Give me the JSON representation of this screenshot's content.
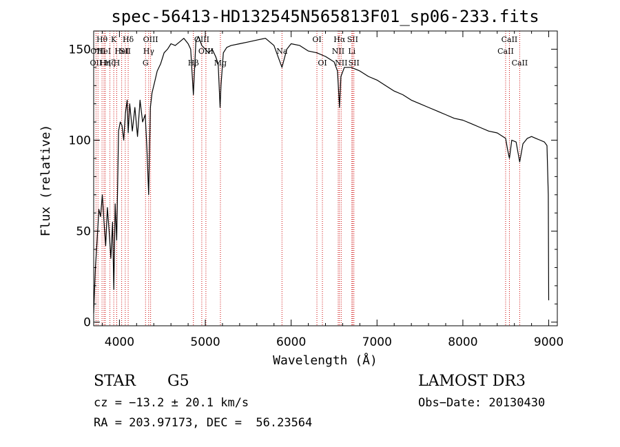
{
  "chart_data": {
    "type": "line",
    "title": "spec-56413-HD132545N565813F01_sp06-233.fits",
    "xlabel": "Wavelength (Å)",
    "ylabel": "Flux (relative)",
    "xlim": [
      3700,
      9100
    ],
    "ylim": [
      -2,
      160
    ],
    "x_ticks": [
      4000,
      5000,
      6000,
      7000,
      8000,
      9000
    ],
    "x_tick_labels": [
      "4000",
      "5000",
      "6000",
      "7000",
      "8000",
      "9000"
    ],
    "y_ticks": [
      0,
      50,
      100,
      150
    ],
    "y_tick_labels": [
      "0",
      "50",
      "100",
      "150"
    ],
    "grid": false,
    "series": [
      {
        "name": "flux",
        "x": [
          3700,
          3720,
          3740,
          3760,
          3780,
          3800,
          3820,
          3840,
          3860,
          3880,
          3900,
          3920,
          3934,
          3950,
          3968,
          3990,
          4010,
          4030,
          4050,
          4070,
          4090,
          4102,
          4120,
          4150,
          4180,
          4210,
          4240,
          4270,
          4300,
          4320,
          4340,
          4360,
          4380,
          4410,
          4440,
          4480,
          4520,
          4560,
          4600,
          4650,
          4700,
          4750,
          4800,
          4830,
          4861,
          4890,
          4920,
          4960,
          5000,
          5040,
          5080,
          5120,
          5150,
          5172,
          5183,
          5210,
          5250,
          5300,
          5400,
          5500,
          5600,
          5700,
          5800,
          5893,
          5950,
          6000,
          6100,
          6200,
          6300,
          6400,
          6500,
          6540,
          6563,
          6580,
          6620,
          6700,
          6800,
          6900,
          7000,
          7100,
          7200,
          7300,
          7400,
          7500,
          7600,
          7700,
          7800,
          7900,
          8000,
          8100,
          8200,
          8300,
          8400,
          8498,
          8520,
          8542,
          8570,
          8620,
          8662,
          8700,
          8750,
          8800,
          8850,
          8900,
          8950,
          8980,
          8995,
          9000
        ],
        "y": [
          5,
          30,
          45,
          62,
          58,
          70,
          55,
          42,
          63,
          50,
          35,
          55,
          18,
          65,
          45,
          105,
          110,
          108,
          100,
          115,
          122,
          104,
          120,
          105,
          118,
          102,
          122,
          110,
          114,
          95,
          70,
          118,
          126,
          132,
          138,
          142,
          148,
          150,
          153,
          152,
          154,
          156,
          153,
          150,
          125,
          154,
          157,
          152,
          150,
          148,
          150,
          146,
          142,
          118,
          130,
          148,
          151,
          152,
          153,
          154,
          155,
          156,
          152,
          140,
          150,
          153,
          152,
          149,
          148,
          146,
          143,
          138,
          118,
          135,
          140,
          140,
          138,
          135,
          133,
          130,
          127,
          125,
          122,
          120,
          118,
          116,
          114,
          112,
          111,
          109,
          107,
          105,
          104,
          101,
          95,
          90,
          100,
          99,
          88,
          98,
          101,
          102,
          101,
          100,
          99,
          97,
          70,
          12
        ]
      }
    ],
    "line_markers": [
      {
        "wavelength": 3727,
        "label": "OII",
        "row": 2
      },
      {
        "wavelength": 3750,
        "label": "OIII",
        "row": 1
      },
      {
        "wavelength": 3797,
        "label": "Hθ",
        "row": 0
      },
      {
        "wavelength": 3820,
        "label": "HeI",
        "row": 1
      },
      {
        "wavelength": 3835,
        "label": "Hη",
        "row": 2
      },
      {
        "wavelength": 3889,
        "label": "Hζ",
        "row": 2
      },
      {
        "wavelength": 3933.7,
        "label": "K",
        "row": 0
      },
      {
        "wavelength": 3968.5,
        "label": "H",
        "row": 2
      },
      {
        "wavelength": 4026,
        "label": "HeI",
        "row": 1
      },
      {
        "wavelength": 4068,
        "label": "SII",
        "row": 1
      },
      {
        "wavelength": 4101.7,
        "label": "Hδ",
        "row": 0
      },
      {
        "wavelength": 4304,
        "label": "G",
        "row": 2
      },
      {
        "wavelength": 4340.5,
        "label": "Hγ",
        "row": 1
      },
      {
        "wavelength": 4363,
        "label": "OIII",
        "row": 0
      },
      {
        "wavelength": 4861.3,
        "label": "Hβ",
        "row": 2
      },
      {
        "wavelength": 4959,
        "label": "OIII",
        "row": 0
      },
      {
        "wavelength": 5007,
        "label": "OIII",
        "row": 1
      },
      {
        "wavelength": 5176,
        "label": "Mg",
        "row": 2
      },
      {
        "wavelength": 5893,
        "label": "Na",
        "row": 1
      },
      {
        "wavelength": 6300,
        "label": "OI",
        "row": 0
      },
      {
        "wavelength": 6364,
        "label": "OI",
        "row": 2
      },
      {
        "wavelength": 6548,
        "label": "NII",
        "row": 1
      },
      {
        "wavelength": 6562.8,
        "label": "Hα",
        "row": 0
      },
      {
        "wavelength": 6583,
        "label": "NII",
        "row": 2
      },
      {
        "wavelength": 6707,
        "label": "Li",
        "row": 1
      },
      {
        "wavelength": 6716,
        "label": "SII",
        "row": 0
      },
      {
        "wavelength": 6731,
        "label": "SII",
        "row": 2
      },
      {
        "wavelength": 8498,
        "label": "CaII",
        "row": 1
      },
      {
        "wavelength": 8542,
        "label": "CaII",
        "row": 0
      },
      {
        "wavelength": 8662,
        "label": "CaII",
        "row": 2
      }
    ]
  },
  "info": {
    "object_type": "STAR",
    "subclass": "G5",
    "survey": "LAMOST DR3",
    "redshift": "cz = −13.2 ± 20.1 km/s",
    "obs_date": "Obs−Date: 20130430",
    "coordinates": "RA = 203.97173, DEC =  56.23564"
  },
  "colors": {
    "spectrum": "#000000",
    "marker": "#cc0000",
    "axis": "#000000",
    "background": "#ffffff"
  }
}
